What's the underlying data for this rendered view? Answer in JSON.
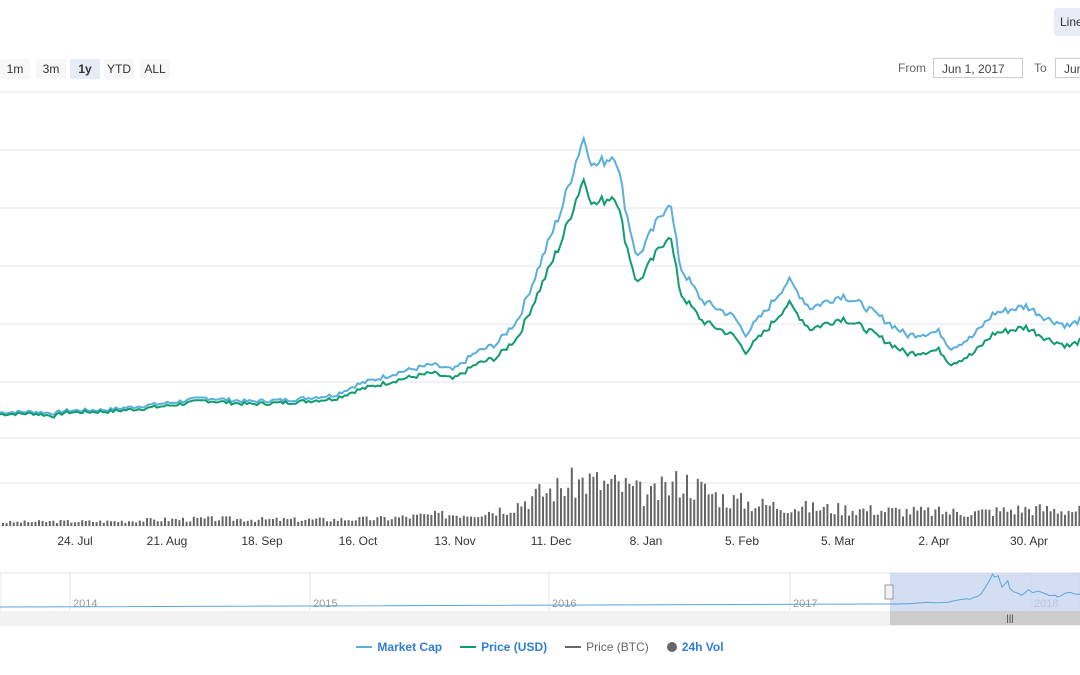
{
  "toolbar": {
    "range_buttons": [
      {
        "label": "1m",
        "active": false
      },
      {
        "label": "3m",
        "active": false
      },
      {
        "label": "1y",
        "active": true
      },
      {
        "label": "YTD",
        "active": false
      },
      {
        "label": "ALL",
        "active": false
      }
    ],
    "from_label": "From",
    "from_value": "Jun 1, 2017",
    "to_label": "To",
    "to_value": "Jun",
    "chart_type_label": "Line"
  },
  "chart_data": {
    "type": "line",
    "x_ticks": [
      "24. Jul",
      "21. Aug",
      "18. Sep",
      "16. Oct",
      "13. Nov",
      "11. Dec",
      "8. Jan",
      "5. Feb",
      "5. Mar",
      "2. Apr",
      "30. Apr"
    ],
    "navigator_ticks": [
      "2014",
      "2015",
      "2016",
      "2017",
      "2018"
    ],
    "grid": true,
    "legend_position": "bottom-center",
    "colors": {
      "market_cap": "#5aafdc",
      "price_usd": "#119c6e",
      "price_btc": "#666666",
      "vol": "#666666",
      "navigator_line": "#5aa5dc",
      "navigator_mask": "#c5d3ee"
    },
    "series": [
      {
        "name": "Market Cap",
        "x": [
          0,
          0.03,
          0.05,
          0.06,
          0.1,
          0.13,
          0.16,
          0.19,
          0.23,
          0.27,
          0.31,
          0.33,
          0.37,
          0.4,
          0.42,
          0.44,
          0.46,
          0.48,
          0.5,
          0.52,
          0.54,
          0.55,
          0.57,
          0.58,
          0.59,
          0.62,
          0.63,
          0.65,
          0.68,
          0.69,
          0.71,
          0.73,
          0.75,
          0.78,
          0.8,
          0.82,
          0.84,
          0.87,
          0.88,
          0.9,
          0.92,
          0.95,
          0.97,
          0.99,
          1.0
        ],
        "values": [
          30,
          31,
          29,
          32,
          33,
          37,
          41,
          46,
          42,
          44,
          49,
          60,
          74,
          82,
          76,
          95,
          105,
          132,
          192,
          252,
          330,
          298,
          312,
          248,
          198,
          262,
          188,
          152,
          134,
          115,
          142,
          174,
          144,
          158,
          146,
          130,
          114,
          118,
          100,
          112,
          138,
          146,
          132,
          124,
          131
        ]
      },
      {
        "name": "Price (USD)",
        "x": [
          0,
          0.03,
          0.05,
          0.06,
          0.1,
          0.13,
          0.16,
          0.19,
          0.23,
          0.27,
          0.31,
          0.33,
          0.37,
          0.4,
          0.42,
          0.44,
          0.46,
          0.48,
          0.5,
          0.52,
          0.54,
          0.55,
          0.57,
          0.58,
          0.59,
          0.62,
          0.63,
          0.65,
          0.68,
          0.69,
          0.71,
          0.73,
          0.75,
          0.78,
          0.8,
          0.82,
          0.84,
          0.87,
          0.88,
          0.9,
          0.92,
          0.95,
          0.97,
          0.99,
          1.0
        ],
        "values": [
          28,
          29,
          26,
          30,
          31,
          34,
          38,
          43,
          39,
          41,
          45,
          54,
          66,
          73,
          66,
          82,
          90,
          113,
          165,
          217,
          285,
          256,
          268,
          213,
          170,
          226,
          160,
          130,
          113,
          96,
          120,
          149,
          121,
          133,
          122,
          108,
          94,
          98,
          83,
          93,
          116,
          123,
          110,
          102,
          108
        ]
      }
    ],
    "volume_series": {
      "name": "24h Vol",
      "x": [
        0,
        0.05,
        0.1,
        0.15,
        0.2,
        0.25,
        0.3,
        0.35,
        0.4,
        0.44,
        0.47,
        0.5,
        0.54,
        0.58,
        0.6,
        0.63,
        0.65,
        0.67,
        0.7,
        0.75,
        0.8,
        0.85,
        0.9,
        0.95,
        1.0
      ],
      "values": [
        4,
        5,
        5,
        7,
        8,
        7,
        7,
        8,
        12,
        14,
        20,
        36,
        50,
        42,
        32,
        50,
        40,
        30,
        24,
        20,
        18,
        16,
        15,
        19,
        17
      ]
    },
    "legend": [
      {
        "name": "Market Cap",
        "marker": "line",
        "color": "#5aafdc"
      },
      {
        "name": "Price (USD)",
        "marker": "line",
        "color": "#119c6e"
      },
      {
        "name": "Price (BTC)",
        "marker": "line",
        "color": "#666666"
      },
      {
        "name": "24h Vol",
        "marker": "dot",
        "color": "#666666"
      }
    ]
  }
}
